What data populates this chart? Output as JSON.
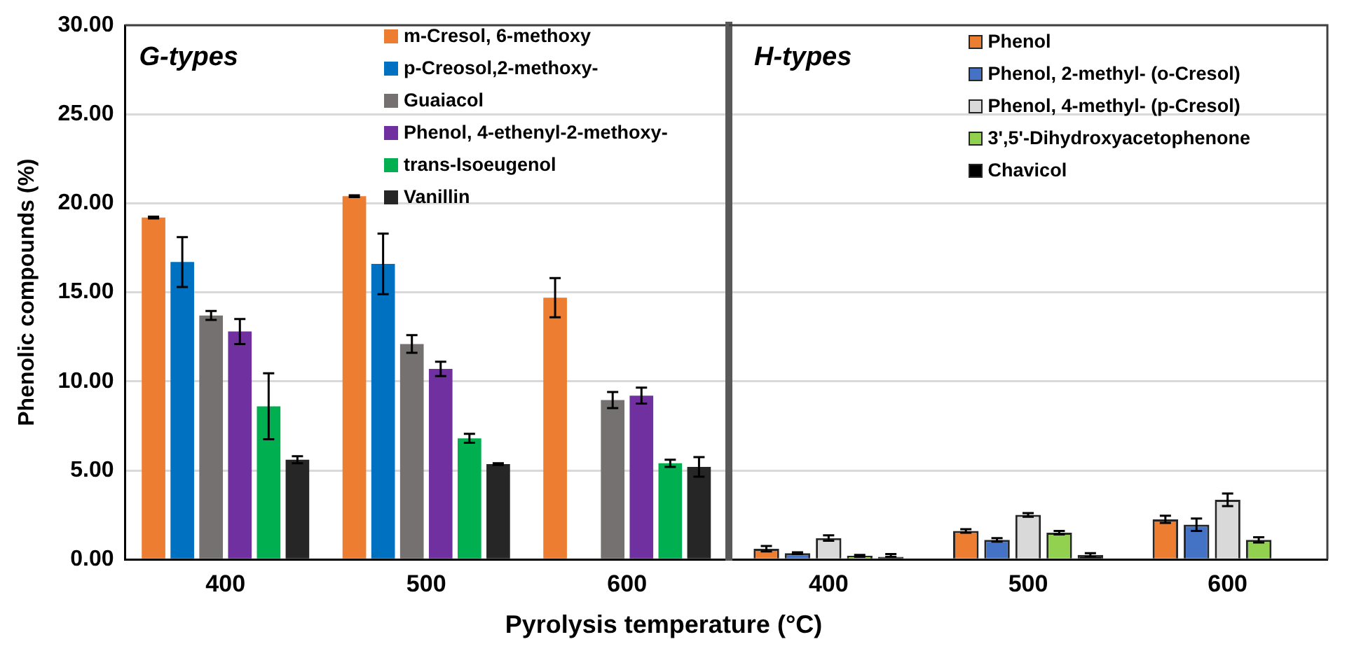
{
  "chart_data": [
    {
      "type": "bar",
      "xlabel": "Pyrolysis temperature (°C)",
      "ylabel": "Phenolic compounds (%)",
      "categories": [
        "400",
        "500",
        "600"
      ],
      "series": [
        {
          "name": "m-Cresol, 6-methoxy",
          "color": "#ed7d31",
          "values": [
            19.2,
            20.4,
            14.7
          ],
          "errors": [
            0.05,
            0.05,
            1.1
          ]
        },
        {
          "name": "p-Creosol,2-methoxy-",
          "color": "#0070c0",
          "values": [
            16.7,
            16.6,
            0
          ],
          "errors": [
            1.4,
            1.7,
            null
          ]
        },
        {
          "name": "Guaiacol",
          "color": "#767171",
          "values": [
            13.7,
            12.1,
            8.95
          ],
          "errors": [
            0.25,
            0.5,
            0.45
          ]
        },
        {
          "name": "Phenol, 4-ethenyl-2-methoxy-",
          "color": "#7030a0",
          "values": [
            12.8,
            10.7,
            9.2
          ],
          "errors": [
            0.7,
            0.4,
            0.45
          ]
        },
        {
          "name": "trans-Isoeugenol",
          "color": "#00b050",
          "values": [
            8.6,
            6.8,
            5.4
          ],
          "errors": [
            1.85,
            0.25,
            0.2
          ]
        },
        {
          "name": "Vanillin",
          "color": "#262626",
          "values": [
            5.6,
            5.35,
            5.2
          ],
          "errors": [
            0.2,
            0.05,
            0.55
          ]
        }
      ],
      "ylim": [
        0,
        30
      ],
      "yticks": [
        {
          "value": 0,
          "label": "0.00"
        },
        {
          "value": 5,
          "label": "5.00"
        },
        {
          "value": 10,
          "label": "10.00"
        },
        {
          "value": 15,
          "label": "15.00"
        },
        {
          "value": 20,
          "label": "20.00"
        },
        {
          "value": 25,
          "label": "25.00"
        },
        {
          "value": 30,
          "label": "30.00"
        }
      ],
      "grid": "y",
      "legend": "top",
      "annotations": [
        "G-types"
      ]
    },
    {
      "type": "bar",
      "categories": [
        "400",
        "500",
        "600"
      ],
      "series": [
        {
          "name": "Phenol",
          "color": "#ed7d31",
          "values": [
            0.6,
            1.6,
            2.25
          ],
          "errors": [
            0.15,
            0.1,
            0.2
          ]
        },
        {
          "name": "Phenol, 2-methyl- (o-Cresol)",
          "color": "#4472c4",
          "values": [
            0.35,
            1.1,
            1.95
          ],
          "errors": [
            0.05,
            0.1,
            0.35
          ]
        },
        {
          "name": "Phenol, 4-methyl- (p-Cresol)",
          "color": "#d9d9d9",
          "values": [
            1.2,
            2.5,
            3.35
          ],
          "errors": [
            0.15,
            0.1,
            0.35
          ]
        },
        {
          "name": "3',5'-Dihydroxyacetophenone",
          "color": "#92d050",
          "values": [
            0.2,
            1.5,
            1.1
          ],
          "errors": [
            0.05,
            0.1,
            0.15
          ]
        },
        {
          "name": "Chavicol",
          "color": "#000000",
          "values": [
            0.15,
            0.25,
            0
          ],
          "errors": [
            [
              0.15,
              0.3
            ],
            0.1,
            null
          ]
        }
      ],
      "ylim": [
        0,
        30
      ],
      "yticks": [
        0,
        5,
        10,
        15,
        20,
        25,
        30
      ],
      "grid": "y",
      "legend": "top",
      "tick_labels": "x",
      "annotations": [
        "H-types"
      ]
    }
  ]
}
